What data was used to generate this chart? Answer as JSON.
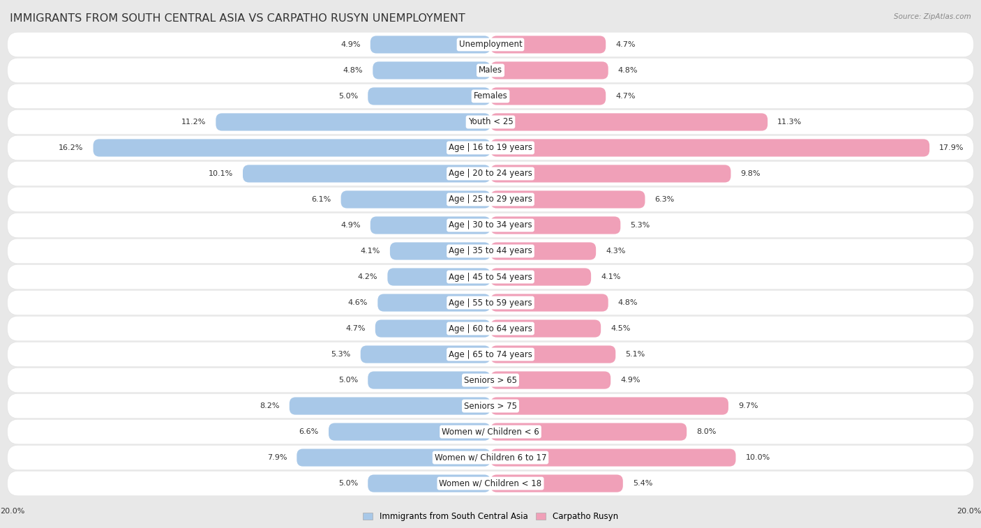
{
  "title": "IMMIGRANTS FROM SOUTH CENTRAL ASIA VS CARPATHO RUSYN UNEMPLOYMENT",
  "source": "Source: ZipAtlas.com",
  "categories": [
    "Unemployment",
    "Males",
    "Females",
    "Youth < 25",
    "Age | 16 to 19 years",
    "Age | 20 to 24 years",
    "Age | 25 to 29 years",
    "Age | 30 to 34 years",
    "Age | 35 to 44 years",
    "Age | 45 to 54 years",
    "Age | 55 to 59 years",
    "Age | 60 to 64 years",
    "Age | 65 to 74 years",
    "Seniors > 65",
    "Seniors > 75",
    "Women w/ Children < 6",
    "Women w/ Children 6 to 17",
    "Women w/ Children < 18"
  ],
  "left_values": [
    4.9,
    4.8,
    5.0,
    11.2,
    16.2,
    10.1,
    6.1,
    4.9,
    4.1,
    4.2,
    4.6,
    4.7,
    5.3,
    5.0,
    8.2,
    6.6,
    7.9,
    5.0
  ],
  "right_values": [
    4.7,
    4.8,
    4.7,
    11.3,
    17.9,
    9.8,
    6.3,
    5.3,
    4.3,
    4.1,
    4.8,
    4.5,
    5.1,
    4.9,
    9.7,
    8.0,
    10.0,
    5.4
  ],
  "left_color": "#a8c8e8",
  "right_color": "#f0a0b8",
  "left_label": "Immigrants from South Central Asia",
  "right_label": "Carpatho Rusyn",
  "max_value": 20.0,
  "bg_color": "#e8e8e8",
  "row_color": "#ffffff",
  "row_alt_color": "#f0f0f0",
  "title_fontsize": 11.5,
  "label_fontsize": 8.5,
  "value_fontsize": 8.0
}
